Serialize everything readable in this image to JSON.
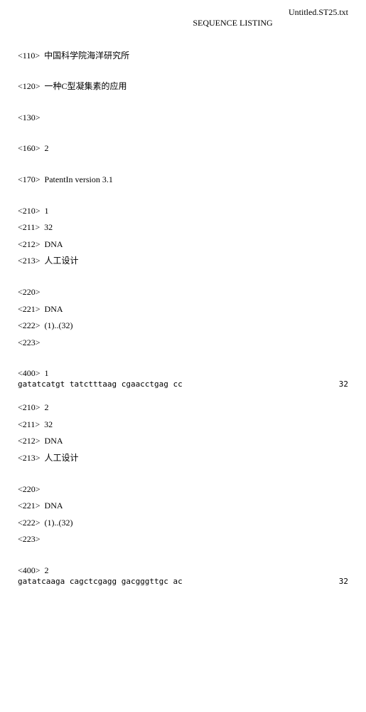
{
  "filename": "Untitled.ST25.txt",
  "title": "SEQUENCE LISTING",
  "entries": {
    "e110": {
      "tag": "<110>",
      "value": "中国科学院海洋研究所"
    },
    "e120": {
      "tag": "<120>",
      "value": "一种C型凝集素的应用"
    },
    "e130": {
      "tag": "<130>",
      "value": ""
    },
    "e160": {
      "tag": "<160>",
      "value": "2"
    },
    "e170": {
      "tag": "<170>",
      "value": "PatentIn version 3.1"
    },
    "s1_210": {
      "tag": "<210>",
      "value": "1"
    },
    "s1_211": {
      "tag": "<211>",
      "value": "32"
    },
    "s1_212": {
      "tag": "<212>",
      "value": "DNA"
    },
    "s1_213": {
      "tag": "<213>",
      "value": "人工设计"
    },
    "s1_220": {
      "tag": "<220>",
      "value": ""
    },
    "s1_221": {
      "tag": "<221>",
      "value": "DNA"
    },
    "s1_222": {
      "tag": "<222>",
      "value": "(1)..(32)"
    },
    "s1_223": {
      "tag": "<223>",
      "value": ""
    },
    "s1_400": {
      "tag": "<400>",
      "value": "1"
    },
    "s1_seq": {
      "text": "gatatcatgt tatctttaag cgaacctgag cc",
      "len": "32"
    },
    "s2_210": {
      "tag": "<210>",
      "value": "2"
    },
    "s2_211": {
      "tag": "<211>",
      "value": "32"
    },
    "s2_212": {
      "tag": "<212>",
      "value": "DNA"
    },
    "s2_213": {
      "tag": "<213>",
      "value": "人工设计"
    },
    "s2_220": {
      "tag": "<220>",
      "value": ""
    },
    "s2_221": {
      "tag": "<221>",
      "value": "DNA"
    },
    "s2_222": {
      "tag": "<222>",
      "value": "(1)..(32)"
    },
    "s2_223": {
      "tag": "<223>",
      "value": ""
    },
    "s2_400": {
      "tag": "<400>",
      "value": "2"
    },
    "s2_seq": {
      "text": "gatatcaaga cagctcgagg gacgggttgc ac",
      "len": "32"
    }
  }
}
